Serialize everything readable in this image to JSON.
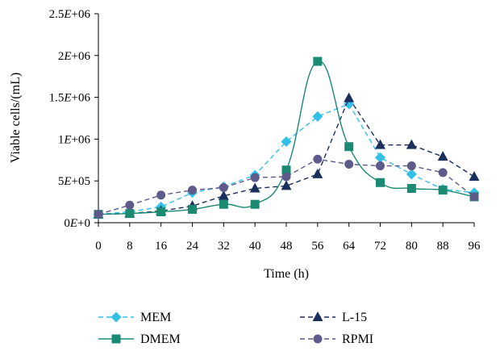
{
  "chart_data": {
    "type": "line",
    "xlabel": "Time (h)",
    "ylabel": "Viable cells/(mL)",
    "xlim": [
      0,
      96
    ],
    "ylim": [
      0,
      2500000
    ],
    "x_ticks": [
      0,
      8,
      16,
      24,
      32,
      40,
      48,
      56,
      64,
      72,
      80,
      88,
      96
    ],
    "x_tick_labels": [
      "0",
      "8",
      "16",
      "24",
      "32",
      "40",
      "48",
      "56",
      "64",
      "72",
      "80",
      "88",
      "96"
    ],
    "y_ticks": [
      0,
      500000,
      1000000,
      1500000,
      2000000,
      2500000
    ],
    "y_tick_labels": [
      "0E+0",
      "5E+05",
      "1E+06",
      "1.5E+06",
      "2E+06",
      "2.5E+06"
    ],
    "grid": false,
    "legend_position": "bottom",
    "series": [
      {
        "name": "MEM",
        "color": "#33c0e8",
        "marker": "diamond",
        "line_style": "dashed",
        "smooth": false,
        "x": [
          0,
          8,
          16,
          24,
          32,
          40,
          48,
          56,
          64,
          72,
          80,
          88,
          96
        ],
        "y": [
          100000,
          130000,
          190000,
          360000,
          430000,
          570000,
          970000,
          1270000,
          1420000,
          780000,
          580000,
          400000,
          360000
        ]
      },
      {
        "name": "L-15",
        "color": "#1b2f5c",
        "marker": "triangle",
        "line_style": "dashed",
        "smooth": false,
        "x": [
          0,
          8,
          16,
          24,
          32,
          40,
          48,
          56,
          64,
          72,
          80,
          88,
          96
        ],
        "y": [
          100000,
          110000,
          140000,
          200000,
          320000,
          410000,
          440000,
          580000,
          1490000,
          930000,
          930000,
          790000,
          550000
        ]
      },
      {
        "name": "DMEM",
        "color": "#1a8a72",
        "marker": "square",
        "line_style": "solid",
        "smooth": true,
        "x": [
          0,
          8,
          16,
          24,
          32,
          40,
          48,
          56,
          64,
          72,
          80,
          88,
          96
        ],
        "y": [
          100000,
          110000,
          130000,
          160000,
          220000,
          220000,
          630000,
          1930000,
          910000,
          480000,
          410000,
          390000,
          310000
        ]
      },
      {
        "name": "RPMI",
        "color": "#5e5a8a",
        "marker": "circle",
        "line_style": "dashed",
        "smooth": false,
        "x": [
          0,
          8,
          16,
          24,
          32,
          40,
          48,
          56,
          64,
          72,
          80,
          88,
          96
        ],
        "y": [
          100000,
          210000,
          330000,
          390000,
          420000,
          540000,
          550000,
          760000,
          700000,
          680000,
          680000,
          600000,
          310000
        ]
      }
    ]
  }
}
